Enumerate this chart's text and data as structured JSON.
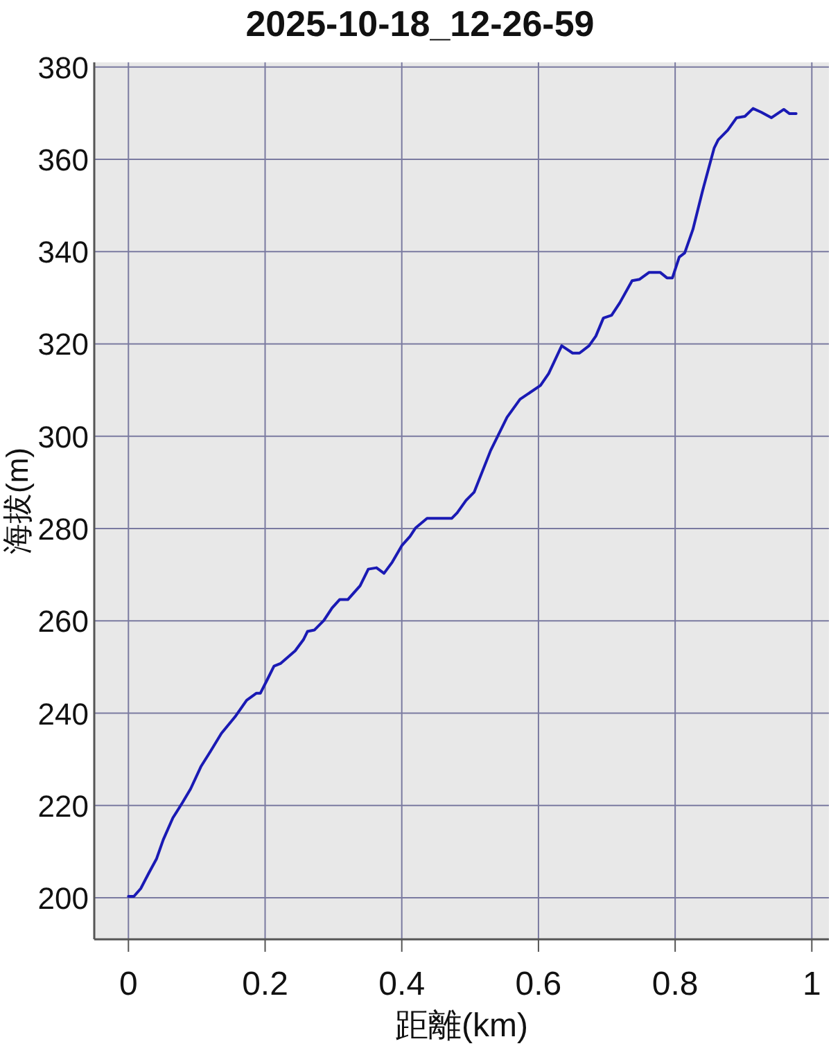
{
  "chart_data": {
    "type": "line",
    "title": "2025-10-18_12-26-59",
    "xlabel": "距離(km)",
    "ylabel": "海拔(m)",
    "xlim": [
      -0.05,
      1.025
    ],
    "ylim": [
      191,
      381
    ],
    "xticks": [
      0,
      0.2,
      0.4,
      0.6,
      0.8,
      1
    ],
    "yticks": [
      200,
      220,
      240,
      260,
      280,
      300,
      320,
      340,
      360,
      380
    ],
    "grid": true,
    "series": [
      {
        "color": "#1a1ab4",
        "x": [
          0,
          0.008,
          0.018,
          0.03,
          0.041,
          0.051,
          0.065,
          0.079,
          0.091,
          0.106,
          0.12,
          0.136,
          0.156,
          0.173,
          0.187,
          0.193,
          0.203,
          0.213,
          0.223,
          0.244,
          0.256,
          0.262,
          0.272,
          0.286,
          0.298,
          0.309,
          0.321,
          0.339,
          0.351,
          0.363,
          0.374,
          0.386,
          0.4,
          0.412,
          0.42,
          0.437,
          0.473,
          0.481,
          0.494,
          0.506,
          0.53,
          0.542,
          0.554,
          0.573,
          0.603,
          0.615,
          0.634,
          0.65,
          0.66,
          0.674,
          0.684,
          0.695,
          0.707,
          0.719,
          0.737,
          0.748,
          0.762,
          0.778,
          0.788,
          0.796,
          0.806,
          0.814,
          0.826,
          0.84,
          0.857,
          0.863,
          0.877,
          0.89,
          0.902,
          0.914,
          0.926,
          0.941,
          0.953,
          0.959,
          0.967,
          0.977
        ],
        "values": [
          200.3,
          200.3,
          202,
          205.4,
          208.4,
          212.6,
          217.3,
          220.6,
          223.6,
          228.4,
          231.7,
          235.6,
          239.2,
          242.8,
          244.3,
          244.3,
          247.2,
          250.2,
          250.8,
          253.5,
          255.9,
          257.7,
          258,
          260.1,
          262.8,
          264.6,
          264.6,
          267.6,
          271.2,
          271.5,
          270.3,
          272.7,
          276.3,
          278.3,
          280.1,
          282.2,
          282.2,
          283.4,
          286.1,
          287.9,
          296.9,
          300.5,
          304.1,
          308,
          311,
          313.6,
          319.6,
          318,
          318,
          319.6,
          321.7,
          325.6,
          326.2,
          328.9,
          333.7,
          334,
          335.5,
          335.5,
          334.3,
          334.3,
          338.8,
          339.7,
          344.8,
          353.1,
          362.4,
          364.2,
          366.3,
          369,
          369.3,
          371,
          370.2,
          369,
          370.2,
          370.8,
          369.9,
          369.9
        ]
      }
    ]
  }
}
